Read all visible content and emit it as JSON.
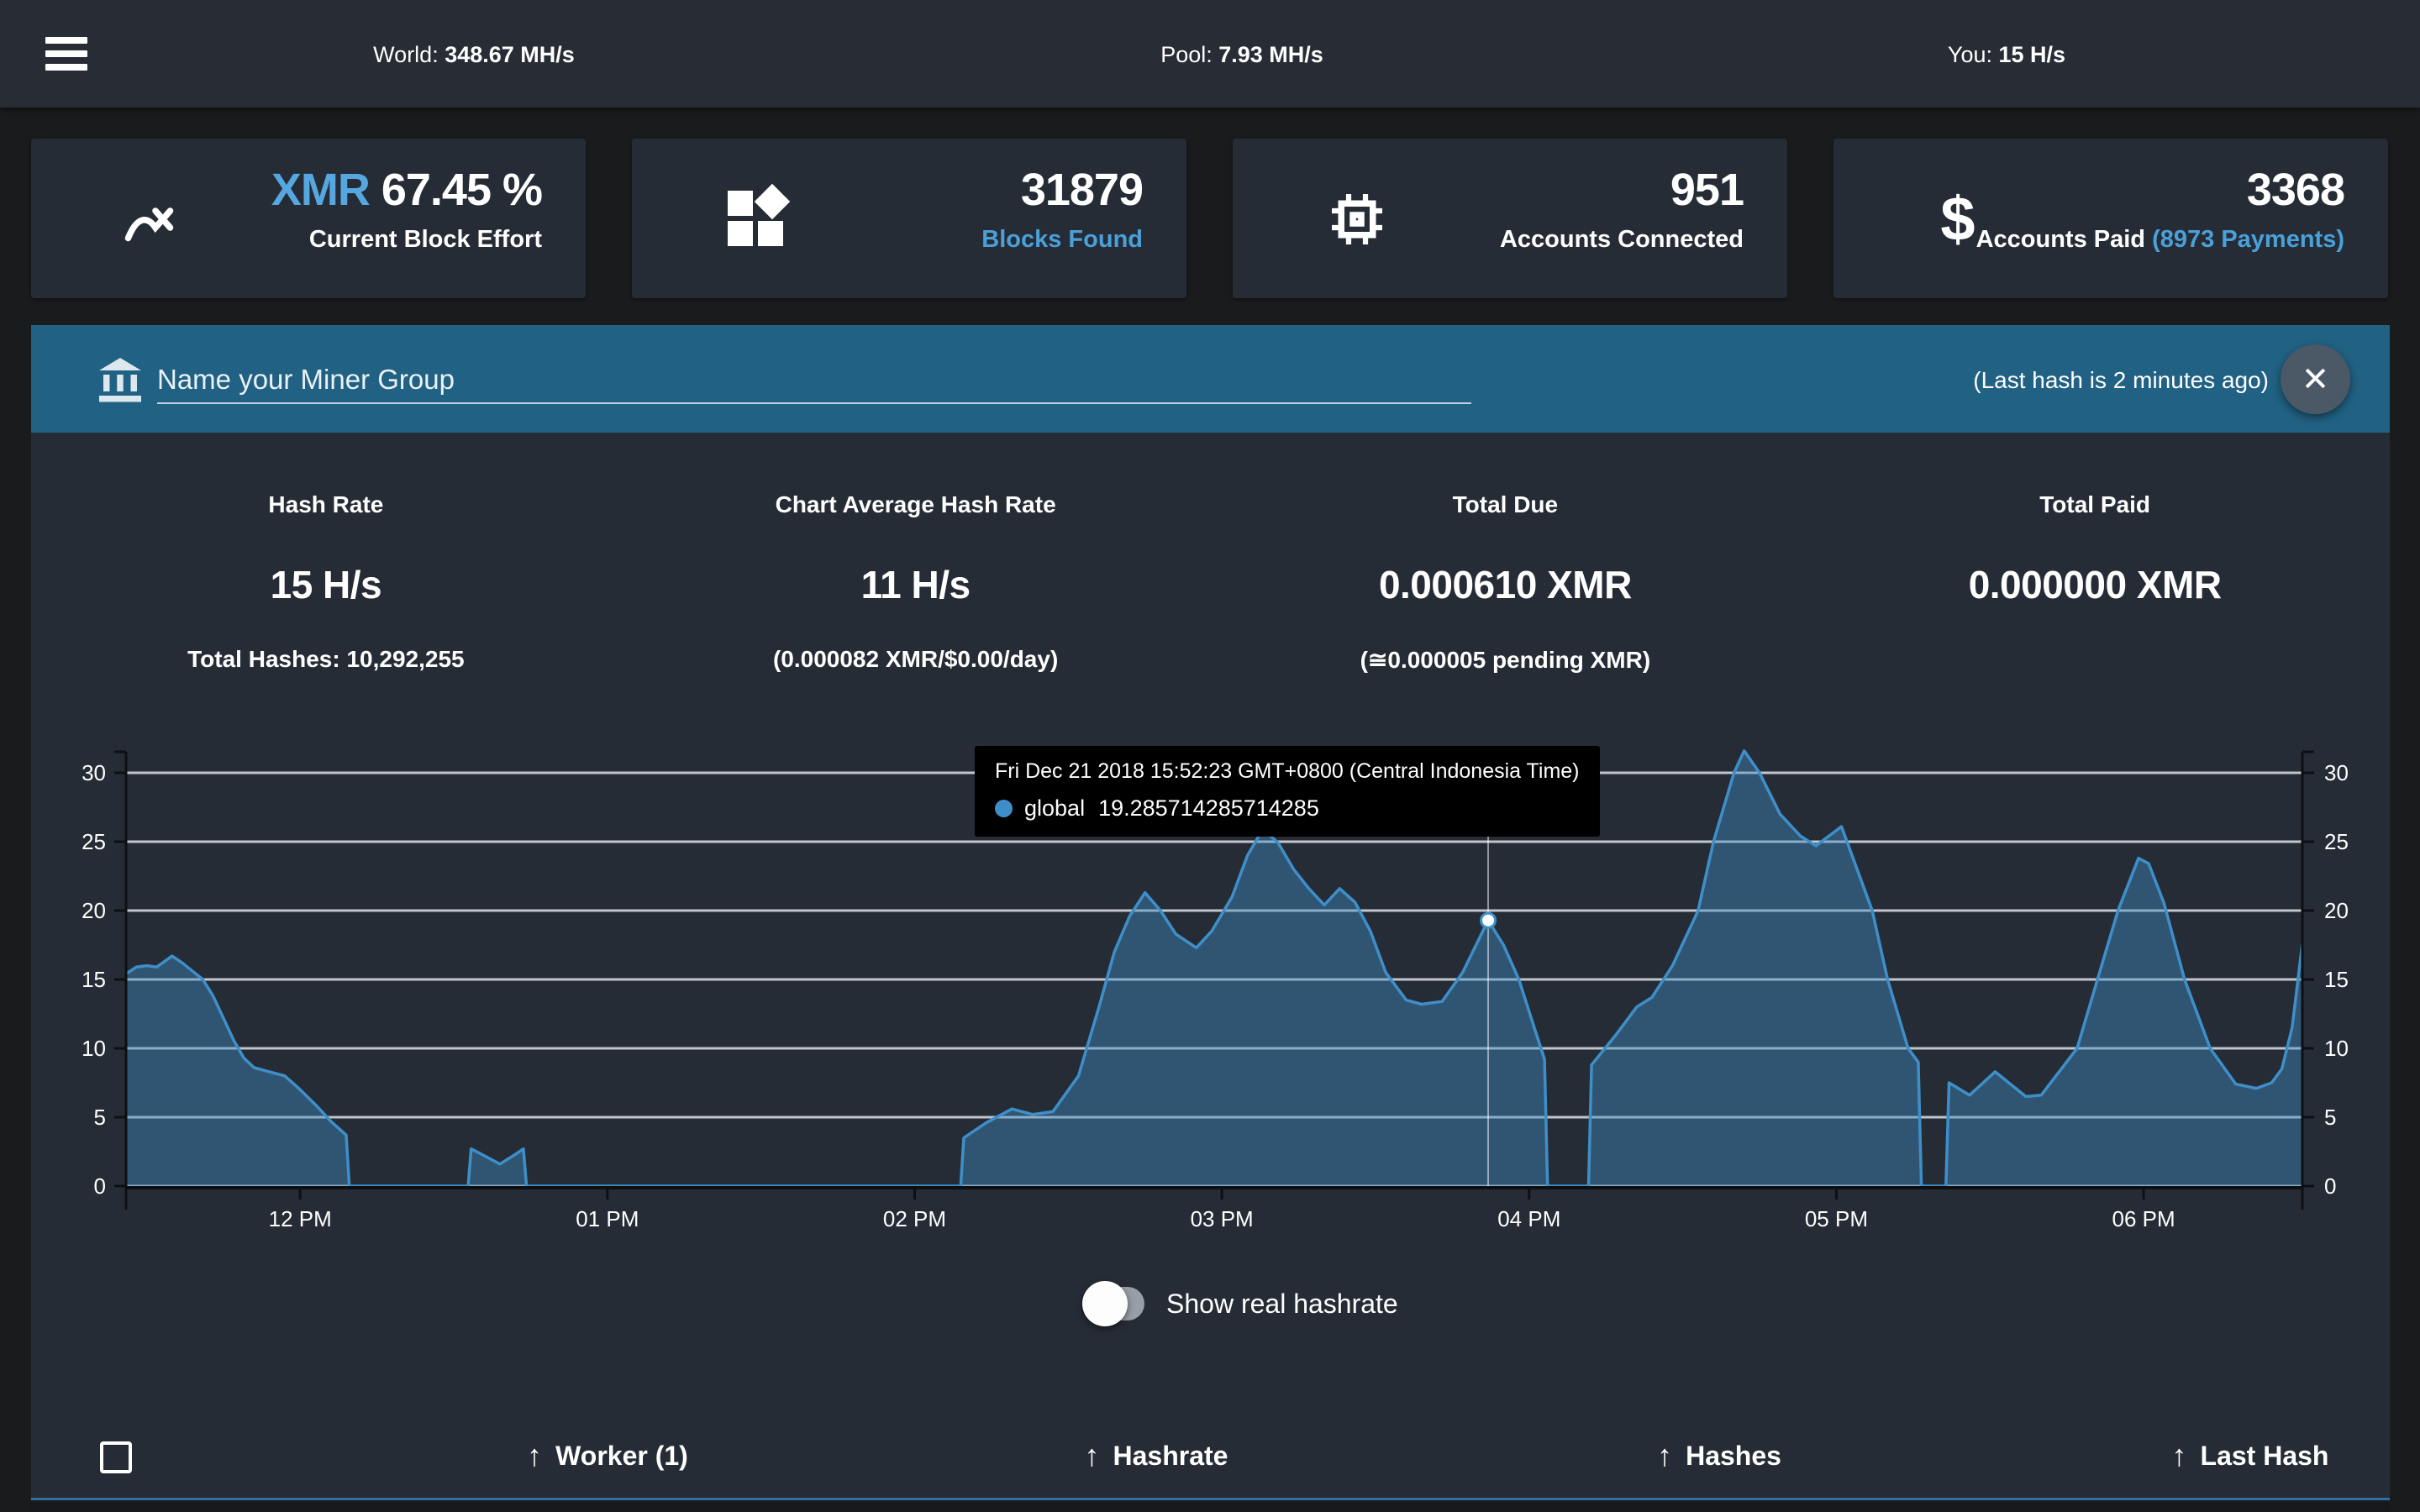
{
  "topbar": {
    "world_label": "World:",
    "world_value": "348.67 MH/s",
    "pool_label": "Pool:",
    "pool_value": "7.93 MH/s",
    "you_label": "You:",
    "you_value": "15 H/s"
  },
  "cards": [
    {
      "icon": "trend-chart-icon",
      "value_accent": "XMR",
      "value": "67.45 %",
      "label": "Current Block Effort"
    },
    {
      "icon": "blocks-icon",
      "value": "31879",
      "label": "Blocks Found"
    },
    {
      "icon": "cpu-chip-icon",
      "value": "951",
      "label": "Accounts Connected"
    },
    {
      "icon": "dollar-icon",
      "value": "3368",
      "label": "Accounts Paid",
      "label_link": "(8973 Payments)",
      "dollar_glyph": "$"
    }
  ],
  "banner": {
    "input_placeholder": "Name your Miner Group",
    "input_value": "",
    "last_hash_note": "(Last hash is 2 minutes ago)",
    "close_icon": "✕"
  },
  "stats": [
    {
      "label": "Hash Rate",
      "value": "15 H/s",
      "sub": "Total Hashes: 10,292,255"
    },
    {
      "label": "Chart Average Hash Rate",
      "value": "11 H/s",
      "sub": "(0.000082 XMR/$0.00/day)"
    },
    {
      "label": "Total Due",
      "value": "0.000610 XMR",
      "sub": "(≅0.000005 pending XMR)"
    },
    {
      "label": "Total Paid",
      "value": "0.000000 XMR",
      "sub": ""
    }
  ],
  "chart_data": {
    "type": "area",
    "series": [
      {
        "name": "global",
        "color": "#3e8fc9",
        "fill": "rgba(62,143,201,0.42)",
        "points": [
          [
            0,
            15.4
          ],
          [
            2,
            15.9
          ],
          [
            4,
            16.0
          ],
          [
            6,
            15.9
          ],
          [
            9,
            16.7
          ],
          [
            11,
            16.2
          ],
          [
            13,
            15.6
          ],
          [
            15,
            15.0
          ],
          [
            17,
            13.8
          ],
          [
            19,
            12.2
          ],
          [
            21,
            10.6
          ],
          [
            23,
            9.3
          ],
          [
            25,
            8.6
          ],
          [
            28,
            8.3
          ],
          [
            31,
            8.0
          ],
          [
            34,
            7.0
          ],
          [
            37,
            5.9
          ],
          [
            40,
            4.7
          ],
          [
            43,
            3.7
          ],
          [
            43.6,
            0
          ],
          [
            66.8,
            0
          ],
          [
            67.4,
            2.7
          ],
          [
            70,
            2.2
          ],
          [
            73,
            1.6
          ],
          [
            76,
            2.3
          ],
          [
            77.6,
            2.7
          ],
          [
            78.2,
            0
          ],
          [
            163,
            0
          ],
          [
            163.6,
            3.5
          ],
          [
            168,
            4.6
          ],
          [
            173,
            5.6
          ],
          [
            177,
            5.2
          ],
          [
            181,
            5.4
          ],
          [
            186,
            8.0
          ],
          [
            190,
            13.0
          ],
          [
            193,
            17.0
          ],
          [
            196,
            19.6
          ],
          [
            199,
            21.3
          ],
          [
            202,
            20.0
          ],
          [
            205,
            18.3
          ],
          [
            209,
            17.3
          ],
          [
            212,
            18.5
          ],
          [
            216,
            21.0
          ],
          [
            219,
            24.0
          ],
          [
            222,
            25.9
          ],
          [
            225,
            24.9
          ],
          [
            228,
            23.0
          ],
          [
            231,
            21.6
          ],
          [
            234,
            20.4
          ],
          [
            237,
            21.6
          ],
          [
            240,
            20.6
          ],
          [
            243,
            18.5
          ],
          [
            246,
            15.5
          ],
          [
            250,
            13.5
          ],
          [
            253,
            13.2
          ],
          [
            257,
            13.4
          ],
          [
            261,
            15.5
          ],
          [
            266,
            19.285714285714285
          ],
          [
            269,
            17.5
          ],
          [
            272,
            15.0
          ],
          [
            275,
            11.5
          ],
          [
            277,
            9.2
          ],
          [
            277.6,
            0
          ],
          [
            285.6,
            0
          ],
          [
            286.2,
            8.8
          ],
          [
            291,
            11.0
          ],
          [
            295,
            13.0
          ],
          [
            298,
            13.7
          ],
          [
            302,
            16.0
          ],
          [
            307,
            20.0
          ],
          [
            310,
            25.0
          ],
          [
            314,
            30.0
          ],
          [
            316,
            31.6
          ],
          [
            319,
            30.0
          ],
          [
            323,
            27.0
          ],
          [
            327,
            25.4
          ],
          [
            330,
            24.7
          ],
          [
            335,
            26.1
          ],
          [
            341,
            20.0
          ],
          [
            344,
            15.0
          ],
          [
            348,
            10.0
          ],
          [
            350,
            9.0
          ],
          [
            350.6,
            0
          ],
          [
            355.4,
            0
          ],
          [
            356,
            7.5
          ],
          [
            360,
            6.6
          ],
          [
            365,
            8.3
          ],
          [
            371,
            6.5
          ],
          [
            374,
            6.6
          ],
          [
            381,
            10.0
          ],
          [
            385,
            15.0
          ],
          [
            389,
            20.0
          ],
          [
            393,
            23.8
          ],
          [
            395,
            23.4
          ],
          [
            398,
            20.5
          ],
          [
            402,
            15.0
          ],
          [
            407,
            10.0
          ],
          [
            412,
            7.4
          ],
          [
            416,
            7.1
          ],
          [
            419,
            7.5
          ],
          [
            421,
            8.5
          ],
          [
            423,
            11.5
          ],
          [
            425,
            17.6
          ]
        ]
      }
    ],
    "x_unit": "minutes since 11:26 AM",
    "xlim": [
      0,
      425
    ],
    "ylim": [
      0,
      32.4
    ],
    "yticks": [
      0,
      5,
      10,
      15,
      20,
      25,
      30
    ],
    "xticks": [
      {
        "pos": 34,
        "label": "12 PM"
      },
      {
        "pos": 94,
        "label": "01 PM"
      },
      {
        "pos": 154,
        "label": "02 PM"
      },
      {
        "pos": 214,
        "label": "03 PM"
      },
      {
        "pos": 274,
        "label": "04 PM"
      },
      {
        "pos": 334,
        "label": "05 PM"
      },
      {
        "pos": 394,
        "label": "06 PM"
      }
    ],
    "grid": true,
    "legend_position": "none",
    "tooltip": {
      "title": "Fri Dec 21 2018 15:52:23 GMT+0800 (Central Indonesia Time)",
      "series_label": "global",
      "value": "19.285714285714285",
      "x": 266,
      "y": 19.285714285714285
    }
  },
  "toggle": {
    "label": "Show real hashrate",
    "state": "off"
  },
  "table": {
    "sort_icon": "↑",
    "columns": [
      "Worker (1)",
      "Hashrate",
      "Hashes",
      "Last Hash"
    ]
  },
  "colors": {
    "page_bg": "#1a1b1d",
    "panel_bg": "#262c36",
    "topbar_bg": "#272c35",
    "banner_bg": "#216183",
    "accent_blue": "#55a7df",
    "link_blue": "#4aa0d8",
    "chart_line": "#3e8fc9",
    "header_border": "#2f719c"
  }
}
